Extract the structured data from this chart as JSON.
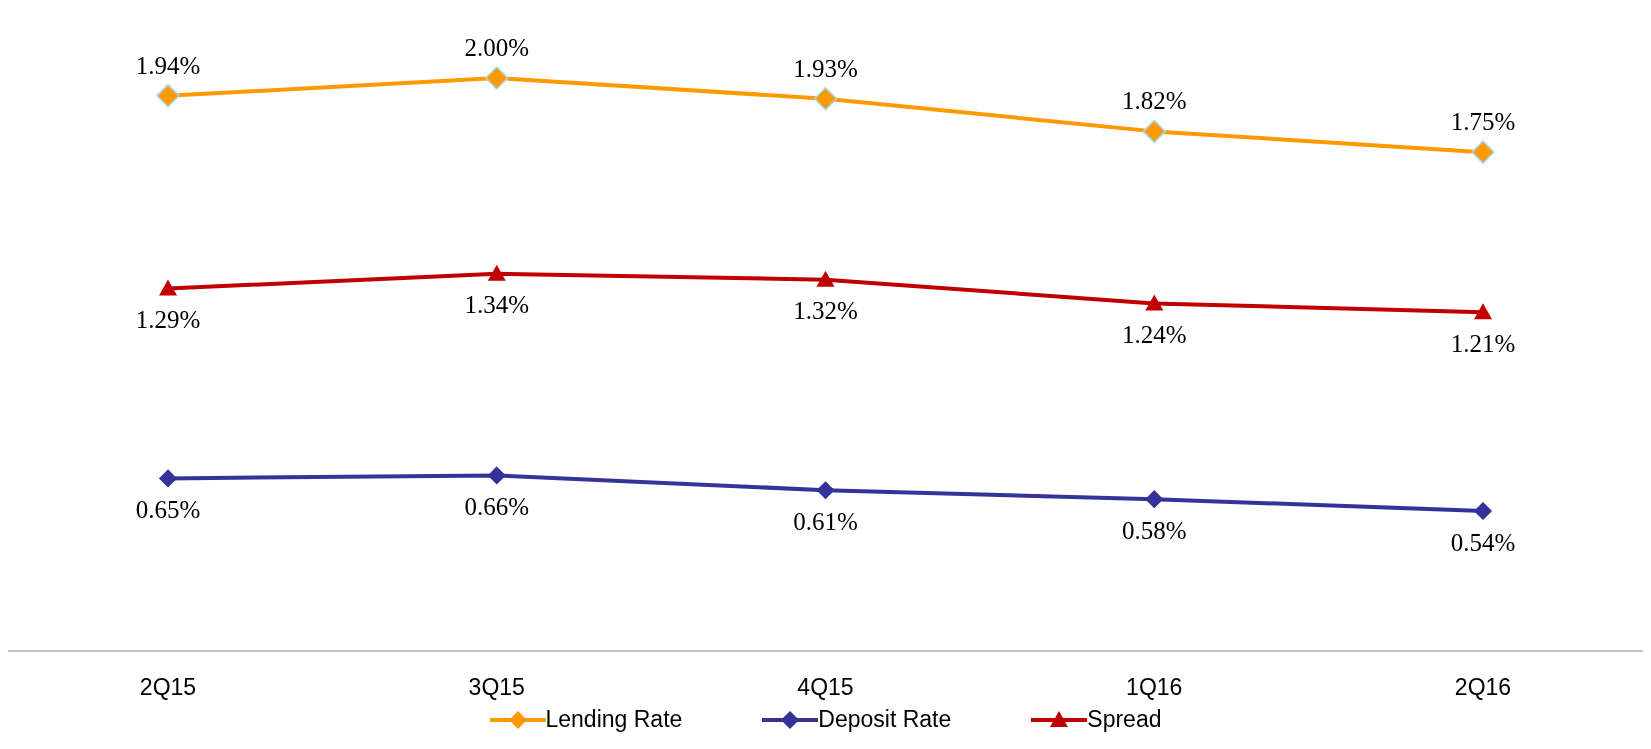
{
  "chart_data": {
    "type": "line",
    "categories": [
      "2Q15",
      "3Q15",
      "4Q15",
      "1Q16",
      "2Q16"
    ],
    "series": [
      {
        "name": "Lending Rate",
        "color": "#ff9900",
        "marker": "diamond",
        "values": [
          1.94,
          2.0,
          1.93,
          1.82,
          1.75
        ],
        "value_labels": [
          "1.94%",
          "2.00%",
          "1.93%",
          "1.82%",
          "1.75%"
        ]
      },
      {
        "name": "Deposit Rate",
        "color": "#333399",
        "marker": "diamond",
        "values": [
          0.65,
          0.66,
          0.61,
          0.58,
          0.54
        ],
        "value_labels": [
          "0.65%",
          "0.66%",
          "0.61%",
          "0.58%",
          "0.54%"
        ]
      },
      {
        "name": "Spread",
        "color": "#c00000",
        "marker": "triangle",
        "values": [
          1.29,
          1.34,
          1.32,
          1.24,
          1.21
        ],
        "value_labels": [
          "1.29%",
          "1.34%",
          "1.32%",
          "1.24%",
          "1.21%"
        ]
      }
    ],
    "grid": false,
    "legend": "bottom",
    "line_style": "solid"
  }
}
